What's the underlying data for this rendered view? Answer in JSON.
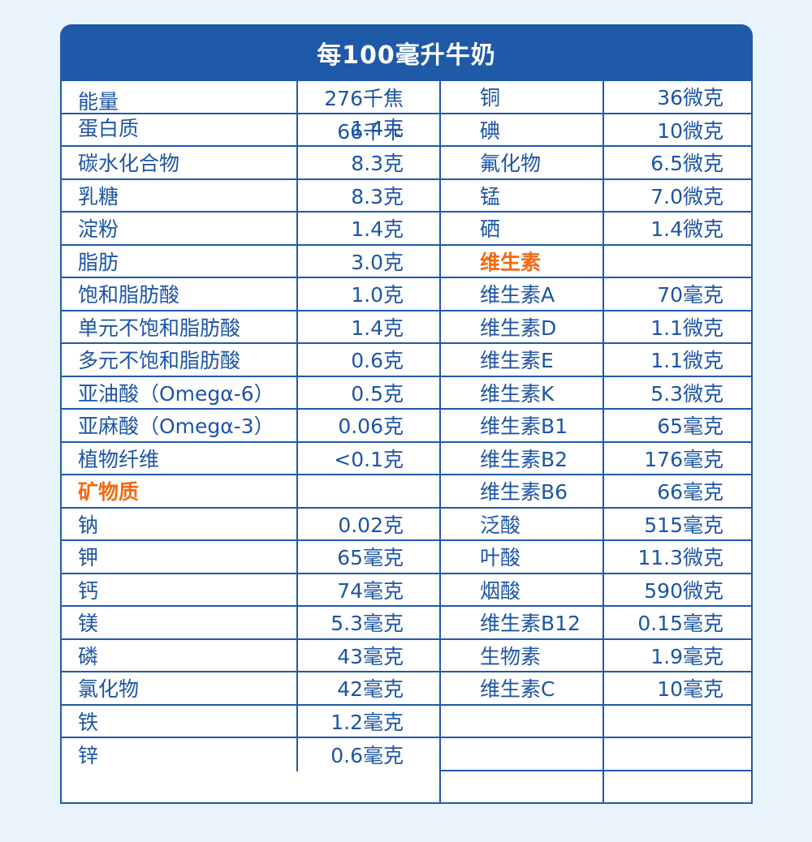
{
  "title": "每100毫升牛奶",
  "colors": {
    "border": "#1f5aa8",
    "header_bg": "#1f5aa8",
    "text": "#1d55a3",
    "section": "#f26a10",
    "page_bg": "#e9f3fb"
  },
  "left_rows": [
    {
      "name": "能量",
      "value": "276千焦",
      "value2": "66千卡",
      "section": false
    },
    {
      "name": "蛋白质",
      "value": "1.4克",
      "section": false
    },
    {
      "name": "碳水化合物",
      "value": "8.3克",
      "section": false
    },
    {
      "name": "乳糖",
      "value": "8.3克",
      "section": false
    },
    {
      "name": "淀粉",
      "value": "1.4克",
      "section": false
    },
    {
      "name": "脂肪",
      "value": "3.0克",
      "section": false
    },
    {
      "name": "饱和脂肪酸",
      "value": "1.0克",
      "section": false
    },
    {
      "name": "单元不饱和脂肪酸",
      "value": "1.4克",
      "section": false
    },
    {
      "name": "多元不饱和脂肪酸",
      "value": "0.6克",
      "section": false
    },
    {
      "name": "亚油酸（Omegα-6）",
      "value": "0.5克",
      "section": false
    },
    {
      "name": "亚麻酸（Omegα-3）",
      "value": "0.06克",
      "section": false
    },
    {
      "name": "植物纤维",
      "value": "<0.1克",
      "section": false
    },
    {
      "name": "矿物质",
      "value": "",
      "section": true
    },
    {
      "name": "钠",
      "value": "0.02克",
      "section": false
    },
    {
      "name": "钾",
      "value": "65毫克",
      "section": false
    },
    {
      "name": "钙",
      "value": "74毫克",
      "section": false
    },
    {
      "name": "镁",
      "value": "5.3毫克",
      "section": false
    },
    {
      "name": "磷",
      "value": "43毫克",
      "section": false
    },
    {
      "name": "氯化物",
      "value": "42毫克",
      "section": false
    },
    {
      "name": "铁",
      "value": "1.2毫克",
      "section": false
    },
    {
      "name": "锌",
      "value": "0.6毫克",
      "section": false
    }
  ],
  "right_rows": [
    {
      "name": "铜",
      "value": "36微克",
      "section": false
    },
    {
      "name": "碘",
      "value": "10微克",
      "section": false
    },
    {
      "name": "氟化物",
      "value": "6.5微克",
      "section": false
    },
    {
      "name": "锰",
      "value": "7.0微克",
      "section": false
    },
    {
      "name": "硒",
      "value": "1.4微克",
      "section": false
    },
    {
      "name": "维生素",
      "value": "",
      "section": true
    },
    {
      "name": "维生素A",
      "value": "70毫克",
      "section": false
    },
    {
      "name": "维生素D",
      "value": "1.1微克",
      "section": false
    },
    {
      "name": "维生素E",
      "value": "1.1微克",
      "section": false
    },
    {
      "name": "维生素K",
      "value": "5.3微克",
      "section": false
    },
    {
      "name": "维生素B1",
      "value": "65毫克",
      "section": false
    },
    {
      "name": "维生素B2",
      "value": "176毫克",
      "section": false
    },
    {
      "name": "维生素B6",
      "value": "66毫克",
      "section": false
    },
    {
      "name": "泛酸",
      "value": "515毫克",
      "section": false
    },
    {
      "name": "叶酸",
      "value": "11.3微克",
      "section": false
    },
    {
      "name": "烟酸",
      "value": "590微克",
      "section": false
    },
    {
      "name": "维生素B12",
      "value": "0.15毫克",
      "section": false
    },
    {
      "name": "生物素",
      "value": "1.9毫克",
      "section": false
    },
    {
      "name": "维生素C",
      "value": "10毫克",
      "section": false
    },
    {
      "name": "",
      "value": "",
      "section": false
    },
    {
      "name": "",
      "value": "",
      "section": false
    },
    {
      "name": "",
      "value": "",
      "section": false
    }
  ]
}
